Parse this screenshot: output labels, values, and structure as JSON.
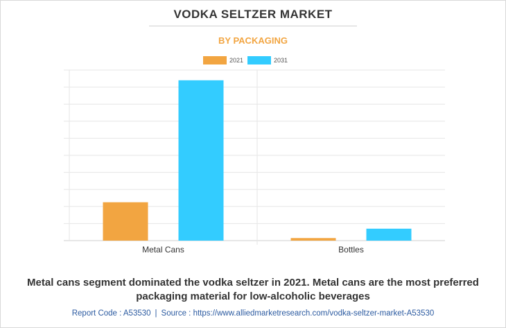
{
  "title": "VODKA SELTZER MARKET",
  "subtitle": "BY PACKAGING",
  "caption_line1": "Metal cans segment dominated the vodka seltzer in 2021. Metal cans are the most preferred",
  "caption_line2": "packaging material for low-alcoholic beverages",
  "footer": {
    "report_code": "Report Code : A53530",
    "separator": "|",
    "source": "Source : https://www.alliedmarketresearch.com/vodka-seltzer-market-A53530"
  },
  "colors": {
    "2021": "#f2a541",
    "2031": "#33ccff",
    "grid": "#e6e6e6",
    "axis": "#cccccc"
  },
  "chart_data": {
    "type": "bar",
    "categories": [
      "Metal Cans",
      "Bottles"
    ],
    "series": [
      {
        "name": "2021",
        "values": [
          22.5,
          1.5
        ]
      },
      {
        "name": "2031",
        "values": [
          94.0,
          7.0
        ]
      }
    ],
    "ylim": [
      0,
      100
    ],
    "yticks": [
      0,
      10,
      20,
      30,
      40,
      50,
      60,
      70,
      80,
      90,
      100
    ],
    "ytick_labels_visible": false,
    "grid": true,
    "legend": "top-center",
    "title": "VODKA SELTZER MARKET",
    "subtitle": "BY PACKAGING",
    "xlabel": "",
    "ylabel": ""
  }
}
